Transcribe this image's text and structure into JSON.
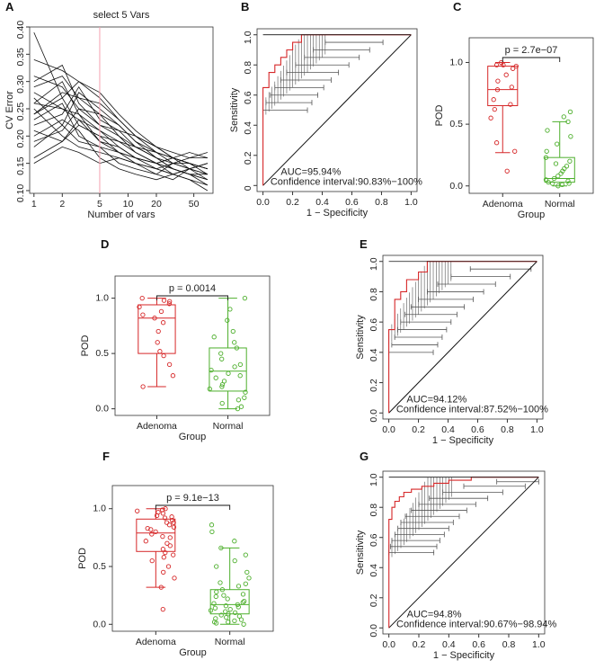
{
  "chart_data": [
    {
      "panel": "A",
      "type": "line",
      "title": "select 5 Vars",
      "xlabel": "Number of vars",
      "ylabel": "CV Error",
      "x": [
        1,
        2,
        3,
        5,
        8,
        12,
        20,
        30,
        45,
        70
      ],
      "x_tick_labels": [
        "1",
        "2",
        "5",
        "10",
        "20",
        "50"
      ],
      "x_ticks": [
        1,
        2,
        5,
        10,
        20,
        50
      ],
      "ylim": [
        0.095,
        0.4
      ],
      "y_tick_labels": [
        "0.10",
        "0.15",
        "0.20",
        "0.25",
        "0.30",
        "0.35",
        "0.40"
      ],
      "y_ticks": [
        0.1,
        0.15,
        0.2,
        0.25,
        0.3,
        0.35,
        0.4
      ],
      "selected_vars": 5,
      "series": [
        {
          "values": [
            0.39,
            0.27,
            0.22,
            0.2,
            0.17,
            0.15,
            0.14,
            0.15,
            0.14,
            0.12
          ]
        },
        {
          "values": [
            0.34,
            0.32,
            0.3,
            0.28,
            0.24,
            0.21,
            0.18,
            0.16,
            0.15,
            0.14
          ]
        },
        {
          "values": [
            0.3,
            0.33,
            0.26,
            0.22,
            0.2,
            0.18,
            0.16,
            0.14,
            0.13,
            0.11
          ]
        },
        {
          "values": [
            0.28,
            0.25,
            0.24,
            0.21,
            0.19,
            0.17,
            0.15,
            0.14,
            0.13,
            0.12
          ]
        },
        {
          "values": [
            0.27,
            0.22,
            0.28,
            0.25,
            0.22,
            0.19,
            0.16,
            0.15,
            0.14,
            0.13
          ]
        },
        {
          "values": [
            0.26,
            0.3,
            0.24,
            0.19,
            0.18,
            0.16,
            0.15,
            0.13,
            0.12,
            0.11
          ]
        },
        {
          "values": [
            0.25,
            0.2,
            0.18,
            0.17,
            0.16,
            0.15,
            0.14,
            0.13,
            0.14,
            0.15
          ]
        },
        {
          "values": [
            0.24,
            0.28,
            0.27,
            0.26,
            0.23,
            0.2,
            0.17,
            0.16,
            0.15,
            0.14
          ]
        },
        {
          "values": [
            0.23,
            0.26,
            0.2,
            0.18,
            0.15,
            0.14,
            0.13,
            0.15,
            0.16,
            0.17
          ]
        },
        {
          "values": [
            0.22,
            0.24,
            0.29,
            0.23,
            0.21,
            0.2,
            0.18,
            0.17,
            0.16,
            0.16
          ]
        },
        {
          "values": [
            0.21,
            0.19,
            0.22,
            0.2,
            0.19,
            0.18,
            0.17,
            0.16,
            0.14,
            0.13
          ]
        },
        {
          "values": [
            0.2,
            0.23,
            0.21,
            0.16,
            0.14,
            0.13,
            0.12,
            0.13,
            0.14,
            0.15
          ]
        },
        {
          "values": [
            0.19,
            0.21,
            0.25,
            0.24,
            0.2,
            0.17,
            0.15,
            0.14,
            0.13,
            0.13
          ]
        },
        {
          "values": [
            0.18,
            0.22,
            0.19,
            0.18,
            0.17,
            0.16,
            0.15,
            0.16,
            0.17,
            0.16
          ]
        },
        {
          "values": [
            0.16,
            0.19,
            0.23,
            0.21,
            0.18,
            0.16,
            0.14,
            0.13,
            0.12,
            0.1
          ]
        },
        {
          "values": [
            0.15,
            0.18,
            0.17,
            0.15,
            0.16,
            0.15,
            0.13,
            0.12,
            0.14,
            0.15
          ]
        },
        {
          "values": [
            0.29,
            0.31,
            0.27,
            0.24,
            0.22,
            0.19,
            0.17,
            0.15,
            0.15,
            0.14
          ]
        },
        {
          "values": [
            0.31,
            0.29,
            0.25,
            0.22,
            0.21,
            0.18,
            0.16,
            0.14,
            0.13,
            0.12
          ]
        },
        {
          "values": [
            0.24,
            0.27,
            0.3,
            0.27,
            0.23,
            0.2,
            0.18,
            0.16,
            0.15,
            0.13
          ]
        },
        {
          "values": [
            0.26,
            0.25,
            0.23,
            0.19,
            0.17,
            0.16,
            0.15,
            0.16,
            0.15,
            0.14
          ]
        }
      ]
    },
    {
      "panel": "B",
      "type": "line",
      "xlabel": "1 − Specificity",
      "ylabel": "Sensitivity",
      "xlim": [
        -0.04,
        1.04
      ],
      "ylim": [
        -0.04,
        1.04
      ],
      "x_tick_labels": [
        "0.0",
        "0.2",
        "0.4",
        "0.6",
        "0.8",
        "1.0"
      ],
      "y_tick_labels": [
        "0",
        "0.2",
        "0.4",
        "0.6",
        "0.8",
        "1.0"
      ],
      "ticks": [
        0,
        0.2,
        0.4,
        0.6,
        0.8,
        1.0
      ],
      "roc": [
        [
          0,
          0
        ],
        [
          0,
          0.65
        ],
        [
          0.04,
          0.65
        ],
        [
          0.04,
          0.75
        ],
        [
          0.08,
          0.75
        ],
        [
          0.08,
          0.8
        ],
        [
          0.12,
          0.8
        ],
        [
          0.12,
          0.85
        ],
        [
          0.16,
          0.85
        ],
        [
          0.16,
          0.9
        ],
        [
          0.2,
          0.9
        ],
        [
          0.2,
          0.95
        ],
        [
          0.26,
          0.95
        ],
        [
          0.26,
          1.0
        ],
        [
          1.0,
          1.0
        ]
      ],
      "ci_y": [
        0.5,
        0.55,
        0.6,
        0.65,
        0.7,
        0.75,
        0.8,
        0.85,
        0.9,
        0.95
      ],
      "ci_x": [
        0.0,
        0.02,
        0.05,
        0.08,
        0.12,
        0.16,
        0.22,
        0.28,
        0.34,
        0.42
      ],
      "auc_text": "AUC=95.94%",
      "ci_text": "Confidence interval:90.83%−100%"
    },
    {
      "panel": "C",
      "type": "box",
      "ylabel": "POD",
      "xlabel": "Group",
      "categories": [
        "Adenoma",
        "Normal"
      ],
      "ylim": [
        -0.06,
        1.2
      ],
      "y_tick_labels": [
        "0.0",
        "0.5",
        "1.0"
      ],
      "y_ticks": [
        0,
        0.5,
        1.0
      ],
      "p_text": "p = 2.7e−07",
      "boxes": [
        {
          "q1": 0.65,
          "median": 0.78,
          "q3": 0.97,
          "whisker_low": 0.27,
          "whisker_high": 1.0,
          "points": [
            0.12,
            0.28,
            0.35,
            0.55,
            0.62,
            0.66,
            0.7,
            0.78,
            0.8,
            0.85,
            0.9,
            0.95,
            0.97,
            0.98,
            0.98,
            1.0
          ]
        },
        {
          "q1": 0.03,
          "median": 0.06,
          "q3": 0.23,
          "whisker_low": 0.0,
          "whisker_high": 0.52,
          "points": [
            0.0,
            0.01,
            0.02,
            0.02,
            0.03,
            0.04,
            0.05,
            0.06,
            0.08,
            0.1,
            0.12,
            0.14,
            0.16,
            0.18,
            0.2,
            0.23,
            0.28,
            0.34,
            0.4,
            0.45,
            0.52,
            0.56,
            0.6
          ]
        }
      ]
    },
    {
      "panel": "D",
      "type": "box",
      "ylabel": "POD",
      "xlabel": "Group",
      "categories": [
        "Adenoma",
        "Normal"
      ],
      "ylim": [
        -0.06,
        1.2
      ],
      "y_tick_labels": [
        "0.0",
        "0.5",
        "1.0"
      ],
      "y_ticks": [
        0,
        0.5,
        1.0
      ],
      "p_text": "p = 0.0014",
      "boxes": [
        {
          "q1": 0.5,
          "median": 0.82,
          "q3": 0.94,
          "whisker_low": 0.2,
          "whisker_high": 1.0,
          "points": [
            0.2,
            0.3,
            0.4,
            0.48,
            0.52,
            0.6,
            0.7,
            0.78,
            0.82,
            0.85,
            0.88,
            0.92,
            0.95,
            0.97,
            0.98,
            1.0
          ]
        },
        {
          "q1": 0.16,
          "median": 0.34,
          "q3": 0.55,
          "whisker_low": 0.0,
          "whisker_high": 1.0,
          "points": [
            0.0,
            0.02,
            0.05,
            0.08,
            0.1,
            0.15,
            0.2,
            0.22,
            0.25,
            0.3,
            0.32,
            0.35,
            0.38,
            0.4,
            0.45,
            0.5,
            0.55,
            0.6,
            0.65,
            0.7,
            0.8,
            0.9,
            1.0,
            0.28,
            0.18
          ]
        }
      ]
    },
    {
      "panel": "E",
      "type": "line",
      "xlabel": "1 − Specificity",
      "ylabel": "Sensitivity",
      "xlim": [
        -0.04,
        1.04
      ],
      "ylim": [
        -0.04,
        1.04
      ],
      "x_tick_labels": [
        "0.0",
        "0.2",
        "0.4",
        "0.6",
        "0.8",
        "1.0"
      ],
      "y_tick_labels": [
        "0.0",
        "0.2",
        "0.4",
        "0.6",
        "0.8",
        "1.0"
      ],
      "ticks": [
        0,
        0.2,
        0.4,
        0.6,
        0.8,
        1.0
      ],
      "roc": [
        [
          0,
          0
        ],
        [
          0,
          0.55
        ],
        [
          0.04,
          0.55
        ],
        [
          0.04,
          0.75
        ],
        [
          0.08,
          0.75
        ],
        [
          0.08,
          0.8
        ],
        [
          0.12,
          0.8
        ],
        [
          0.12,
          0.88
        ],
        [
          0.2,
          0.88
        ],
        [
          0.2,
          0.93
        ],
        [
          0.26,
          0.93
        ],
        [
          0.26,
          1.0
        ],
        [
          1.0,
          1.0
        ]
      ],
      "ci_y": [
        0.4,
        0.45,
        0.5,
        0.55,
        0.6,
        0.65,
        0.7,
        0.75,
        0.8,
        0.85,
        0.9,
        0.95
      ],
      "ci_x": [
        0.0,
        0.02,
        0.04,
        0.06,
        0.08,
        0.11,
        0.15,
        0.2,
        0.26,
        0.33,
        0.42,
        0.55
      ],
      "auc_text": "AUC=94.12%",
      "ci_text": "Confidence interval:87.52%−100%"
    },
    {
      "panel": "F",
      "type": "box",
      "ylabel": "POD",
      "xlabel": "Group",
      "categories": [
        "Adenoma",
        "Normal"
      ],
      "ylim": [
        -0.06,
        1.2
      ],
      "y_tick_labels": [
        "0.0",
        "0.5",
        "1.0"
      ],
      "y_ticks": [
        0,
        0.5,
        1.0
      ],
      "p_text": "p = 9.1e−13",
      "boxes": [
        {
          "q1": 0.63,
          "median": 0.79,
          "q3": 0.91,
          "whisker_low": 0.32,
          "whisker_high": 1.0,
          "points": [
            0.13,
            0.32,
            0.4,
            0.45,
            0.5,
            0.55,
            0.6,
            0.62,
            0.65,
            0.68,
            0.7,
            0.72,
            0.75,
            0.78,
            0.8,
            0.82,
            0.84,
            0.86,
            0.88,
            0.9,
            0.92,
            0.94,
            0.96,
            0.97,
            0.98,
            0.99,
            1.0,
            0.76,
            0.83,
            0.58,
            0.93,
            0.88
          ]
        },
        {
          "q1": 0.09,
          "median": 0.17,
          "q3": 0.3,
          "whisker_low": 0.0,
          "whisker_high": 0.66,
          "points": [
            0.0,
            0.01,
            0.02,
            0.03,
            0.04,
            0.05,
            0.06,
            0.08,
            0.09,
            0.1,
            0.12,
            0.13,
            0.15,
            0.16,
            0.17,
            0.18,
            0.2,
            0.22,
            0.24,
            0.26,
            0.28,
            0.3,
            0.33,
            0.36,
            0.4,
            0.45,
            0.5,
            0.55,
            0.6,
            0.66,
            0.72,
            0.8,
            0.86,
            0.11,
            0.07,
            0.19,
            0.25,
            0.02,
            0.14,
            0.35
          ]
        }
      ]
    },
    {
      "panel": "G",
      "type": "line",
      "xlabel": "1 − Specificity",
      "ylabel": "Sensitivity",
      "xlim": [
        -0.04,
        1.04
      ],
      "ylim": [
        -0.04,
        1.04
      ],
      "x_tick_labels": [
        "0.0",
        "0.2",
        "0.4",
        "0.6",
        "0.8",
        "1.0"
      ],
      "y_tick_labels": [
        "0.0",
        "0.2",
        "0.4",
        "0.6",
        "0.8",
        "1.0"
      ],
      "ticks": [
        0,
        0.2,
        0.4,
        0.6,
        0.8,
        1.0
      ],
      "roc": [
        [
          0,
          0
        ],
        [
          0,
          0.72
        ],
        [
          0.02,
          0.72
        ],
        [
          0.02,
          0.8
        ],
        [
          0.04,
          0.8
        ],
        [
          0.04,
          0.84
        ],
        [
          0.07,
          0.84
        ],
        [
          0.07,
          0.87
        ],
        [
          0.1,
          0.87
        ],
        [
          0.1,
          0.9
        ],
        [
          0.15,
          0.9
        ],
        [
          0.15,
          0.92
        ],
        [
          0.22,
          0.92
        ],
        [
          0.22,
          0.94
        ],
        [
          0.3,
          0.94
        ],
        [
          0.3,
          0.96
        ],
        [
          0.4,
          0.96
        ],
        [
          0.4,
          0.98
        ],
        [
          0.55,
          0.98
        ],
        [
          0.55,
          1.0
        ],
        [
          1.0,
          1.0
        ]
      ],
      "ci_y": [
        0.5,
        0.54,
        0.58,
        0.62,
        0.66,
        0.7,
        0.74,
        0.78,
        0.82,
        0.86,
        0.9,
        0.94,
        0.97
      ],
      "ci_x": [
        0.0,
        0.01,
        0.02,
        0.04,
        0.06,
        0.08,
        0.11,
        0.15,
        0.2,
        0.27,
        0.36,
        0.5,
        0.72
      ],
      "auc_text": "AUC=94.8%",
      "ci_text": "Confidence interval:90.67%−98.94%"
    }
  ],
  "colors": {
    "adenoma": "#d62728",
    "normal": "#4daf2c",
    "roc": "#d62728",
    "ci": "#555555",
    "select_line": "#f4a0b0"
  }
}
